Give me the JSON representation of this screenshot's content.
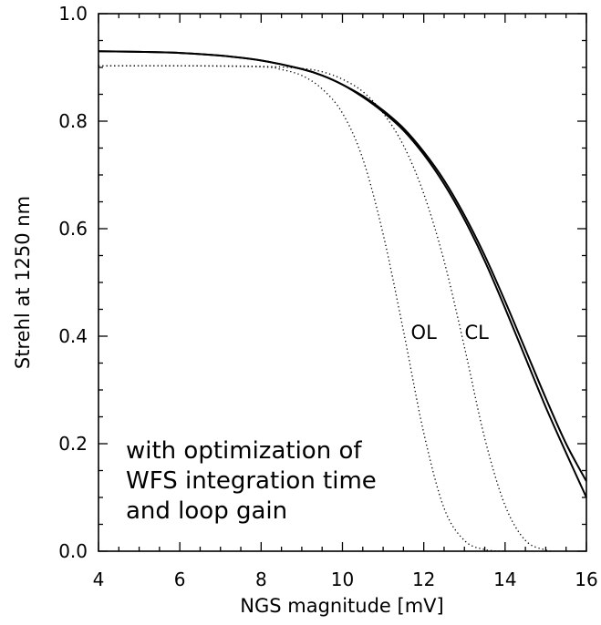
{
  "chart_data": {
    "type": "line",
    "title": "",
    "xlabel": "NGS magnitude [mV]",
    "ylabel": "Strehl at 1250 nm",
    "xlim": [
      4,
      16
    ],
    "ylim": [
      0.0,
      1.0
    ],
    "x_ticks": [
      "4",
      "6",
      "8",
      "10",
      "12",
      "14",
      "16"
    ],
    "y_ticks": [
      "0.0",
      "0.2",
      "0.4",
      "0.6",
      "0.8",
      "1.0"
    ],
    "grid": false,
    "legend": "none",
    "annotation_lines": [
      "with optimization of",
      "WFS integration time",
      "and loop gain"
    ],
    "curve_labels": [
      {
        "text": "OL",
        "x": 12.0,
        "y": 0.395
      },
      {
        "text": "CL",
        "x": 13.3,
        "y": 0.395
      }
    ],
    "series": [
      {
        "style": "solid",
        "x": [
          4,
          5,
          6,
          7,
          8,
          9,
          9.5,
          10,
          10.5,
          11,
          11.5,
          12,
          12.5,
          13,
          13.5,
          14,
          14.5,
          15,
          15.5,
          16
        ],
        "y": [
          0.93,
          0.929,
          0.927,
          0.922,
          0.913,
          0.897,
          0.885,
          0.868,
          0.847,
          0.82,
          0.787,
          0.743,
          0.69,
          0.625,
          0.55,
          0.465,
          0.375,
          0.285,
          0.2,
          0.13
        ]
      },
      {
        "style": "solid",
        "x": [
          4,
          5,
          6,
          7,
          8,
          9,
          9.5,
          10,
          10.5,
          11,
          11.5,
          12,
          12.5,
          13,
          13.5,
          14,
          14.5,
          15,
          15.5,
          16
        ],
        "y": [
          0.93,
          0.929,
          0.927,
          0.922,
          0.913,
          0.897,
          0.885,
          0.868,
          0.845,
          0.817,
          0.783,
          0.738,
          0.683,
          0.617,
          0.54,
          0.452,
          0.36,
          0.268,
          0.183,
          0.1
        ]
      },
      {
        "style": "dotted",
        "x": [
          4,
          6,
          8,
          9,
          9.5,
          10,
          10.5,
          11,
          11.5,
          12,
          12.5,
          13,
          13.5,
          14,
          14.5,
          15,
          15.2
        ],
        "y": [
          0.903,
          0.903,
          0.902,
          0.898,
          0.892,
          0.878,
          0.855,
          0.815,
          0.755,
          0.665,
          0.54,
          0.38,
          0.21,
          0.085,
          0.02,
          0.002,
          0.0
        ]
      },
      {
        "style": "dotted",
        "x": [
          4,
          6,
          8,
          8.5,
          9,
          9.5,
          10,
          10.5,
          11,
          11.5,
          12,
          12.5,
          13,
          13.5,
          14
        ],
        "y": [
          0.903,
          0.903,
          0.901,
          0.896,
          0.885,
          0.86,
          0.815,
          0.73,
          0.59,
          0.41,
          0.22,
          0.08,
          0.02,
          0.003,
          0.0
        ]
      }
    ]
  }
}
